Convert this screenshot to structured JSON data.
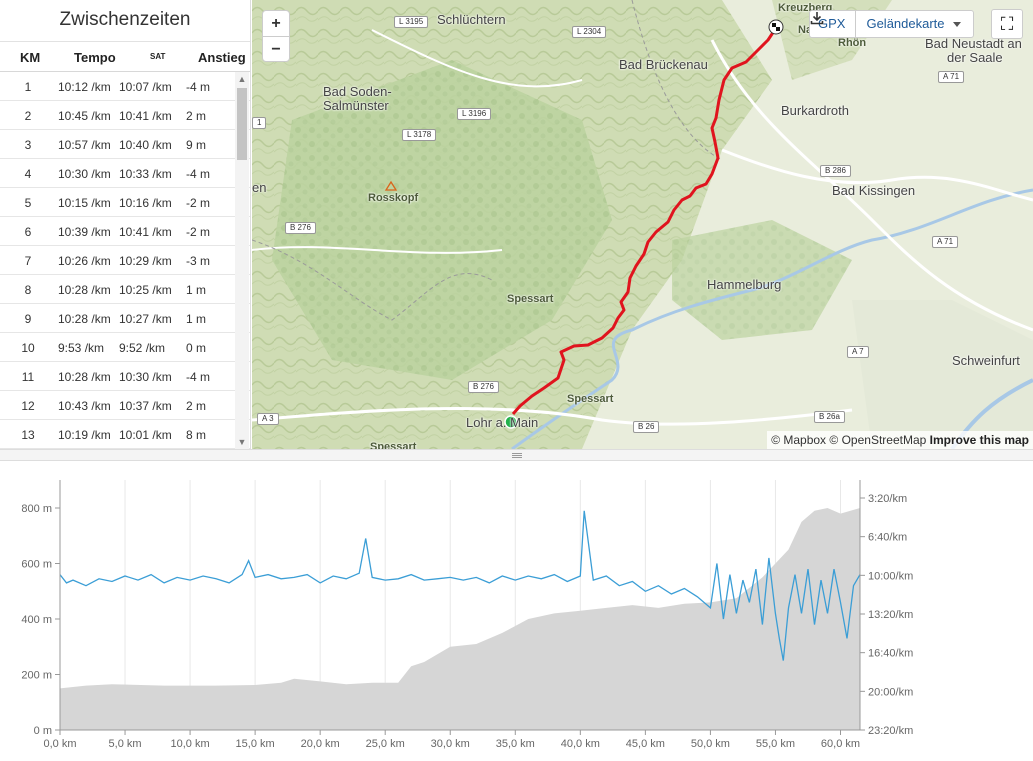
{
  "splits": {
    "title": "Zwischenzeiten",
    "columns": {
      "km": "KM",
      "tempo": "Tempo",
      "sat": "SAT",
      "climb": "Anstieg"
    },
    "rows": [
      {
        "km": "1",
        "tempo": "10:12 /km",
        "sat": "10:07 /km",
        "climb": "-4  m"
      },
      {
        "km": "2",
        "tempo": "10:45 /km",
        "sat": "10:41 /km",
        "climb": "2  m"
      },
      {
        "km": "3",
        "tempo": "10:57 /km",
        "sat": "10:40 /km",
        "climb": "9  m"
      },
      {
        "km": "4",
        "tempo": "10:30 /km",
        "sat": "10:33 /km",
        "climb": "-4  m"
      },
      {
        "km": "5",
        "tempo": "10:15 /km",
        "sat": "10:16 /km",
        "climb": "-2  m"
      },
      {
        "km": "6",
        "tempo": "10:39 /km",
        "sat": "10:41 /km",
        "climb": "-2  m"
      },
      {
        "km": "7",
        "tempo": "10:26 /km",
        "sat": "10:29 /km",
        "climb": "-3  m"
      },
      {
        "km": "8",
        "tempo": "10:28 /km",
        "sat": "10:25 /km",
        "climb": "1  m"
      },
      {
        "km": "9",
        "tempo": "10:28 /km",
        "sat": "10:27 /km",
        "climb": "1  m"
      },
      {
        "km": "10",
        "tempo": "9:53  /km",
        "sat": "9:52  /km",
        "climb": "0  m"
      },
      {
        "km": "11",
        "tempo": "10:28 /km",
        "sat": "10:30 /km",
        "climb": "-4  m"
      },
      {
        "km": "12",
        "tempo": "10:43 /km",
        "sat": "10:37 /km",
        "climb": "2  m"
      },
      {
        "km": "13",
        "tempo": "10:19 /km",
        "sat": "10:01 /km",
        "climb": "8  m"
      }
    ]
  },
  "map": {
    "zoom_in": "+",
    "zoom_out": "−",
    "gpx_label": "GPX",
    "layer_label": "Geländekarte",
    "fullscreen_icon": "⛶",
    "attribution": {
      "mapbox": "© Mapbox",
      "osm": "© OpenStreetMap",
      "improve": "Improve this map"
    },
    "places": [
      {
        "id": "schluechtern",
        "text": "Schlüchtern"
      },
      {
        "id": "bad-brueckenau",
        "text": "Bad Brückenau"
      },
      {
        "id": "bad-soden",
        "text": "Bad Soden-"
      },
      {
        "id": "salmuenster",
        "text": "Salmünster"
      },
      {
        "id": "burkardroth",
        "text": "Burkardroth"
      },
      {
        "id": "bad-kissingen",
        "text": "Bad Kissingen"
      },
      {
        "id": "hammelburg",
        "text": "Hammelburg"
      },
      {
        "id": "bad-neustadt-1",
        "text": "Bad Neustadt an"
      },
      {
        "id": "bad-neustadt-2",
        "text": "der Saale"
      },
      {
        "id": "schweinfurt",
        "text": "Schweinfurt"
      },
      {
        "id": "lohr",
        "text": "Lohr a. Main"
      },
      {
        "id": "kreuzberg",
        "text": "Kreuzberg"
      },
      {
        "id": "rhoen",
        "text": "Rhön"
      },
      {
        "id": "rosskopf",
        "text": "Rosskopf"
      },
      {
        "id": "spessart-1",
        "text": "Spessart"
      },
      {
        "id": "spessart-2",
        "text": "Spessart"
      },
      {
        "id": "spessart-3",
        "text": "Spessart"
      },
      {
        "id": "edge-en",
        "text": "en"
      },
      {
        "id": "edge-na",
        "text": "Na"
      }
    ],
    "roads": [
      "L 3195",
      "L 2304",
      "L 3196",
      "L 3178",
      "B 276",
      "B 276",
      "B 286",
      "A 71",
      "A 71",
      "A 7",
      "A 3",
      "B 26",
      "B 26a",
      "1"
    ],
    "colors": {
      "route": "#e0141e",
      "start": "#22b14c",
      "water": "#a8c8e6"
    }
  },
  "chart": {
    "x_ticks": [
      "0,0 km",
      "5,0 km",
      "10,0 km",
      "15,0 km",
      "20,0 km",
      "25,0 km",
      "30,0 km",
      "35,0 km",
      "40,0 km",
      "45,0 km",
      "50,0 km",
      "55,0 km",
      "60,0 km"
    ],
    "y_left_ticks": [
      "0 m",
      "200 m",
      "400 m",
      "600 m",
      "800 m"
    ],
    "y_right_ticks": [
      "3:20/km",
      "6:40/km",
      "10:00/km",
      "13:20/km",
      "16:40/km",
      "20:00/km",
      "23:20/km"
    ]
  },
  "chart_data": {
    "type": "area",
    "series": [
      {
        "kind": "area",
        "color": "#d6d6d6",
        "x": [
          0,
          2,
          4,
          8,
          12,
          15,
          17,
          18,
          20,
          22,
          24,
          26,
          27,
          28,
          30,
          32,
          34,
          36,
          38,
          40,
          42,
          44,
          46,
          48,
          50,
          52,
          54,
          55,
          56,
          57,
          58,
          59,
          60,
          61.5
        ],
        "y": [
          150,
          160,
          165,
          160,
          160,
          162,
          170,
          185,
          175,
          165,
          170,
          170,
          230,
          245,
          300,
          310,
          350,
          400,
          420,
          430,
          440,
          450,
          440,
          455,
          460,
          475,
          550,
          600,
          650,
          750,
          790,
          800,
          780,
          800
        ]
      },
      {
        "kind": "line",
        "color": "#3b9ed6",
        "x": [
          0,
          0.5,
          1,
          2,
          3,
          4,
          5,
          6,
          7,
          8,
          9,
          10,
          11,
          12,
          13,
          14,
          14.5,
          15,
          16,
          17,
          18,
          19,
          20,
          21,
          22,
          23,
          23.5,
          24,
          25,
          26,
          27,
          28,
          29,
          30,
          31,
          32,
          33,
          34,
          35,
          36,
          37,
          38,
          39,
          40,
          40.3,
          41,
          42,
          43,
          44,
          45,
          46,
          47,
          48,
          49,
          50,
          50.5,
          51,
          51.5,
          52,
          52.5,
          53,
          53.5,
          54,
          54.5,
          55,
          55.3,
          55.6,
          56,
          56.5,
          57,
          57.5,
          58,
          58.5,
          59,
          59.5,
          60,
          60.5,
          61,
          61.5
        ],
        "y": [
          560,
          530,
          540,
          520,
          545,
          535,
          555,
          540,
          560,
          530,
          550,
          540,
          555,
          545,
          530,
          560,
          610,
          550,
          560,
          545,
          550,
          560,
          530,
          555,
          545,
          565,
          690,
          550,
          540,
          545,
          560,
          540,
          545,
          550,
          540,
          550,
          530,
          555,
          540,
          555,
          545,
          560,
          535,
          555,
          790,
          540,
          555,
          520,
          535,
          500,
          520,
          490,
          510,
          480,
          440,
          600,
          400,
          560,
          420,
          540,
          460,
          580,
          380,
          620,
          420,
          330,
          250,
          440,
          560,
          420,
          580,
          380,
          540,
          420,
          580,
          460,
          330,
          520,
          560
        ]
      }
    ],
    "xlim": [
      0,
      61.5
    ],
    "ylim_left": [
      0,
      800
    ],
    "y_left_label": "m",
    "y_right_label": "/km",
    "x_label": "km"
  }
}
